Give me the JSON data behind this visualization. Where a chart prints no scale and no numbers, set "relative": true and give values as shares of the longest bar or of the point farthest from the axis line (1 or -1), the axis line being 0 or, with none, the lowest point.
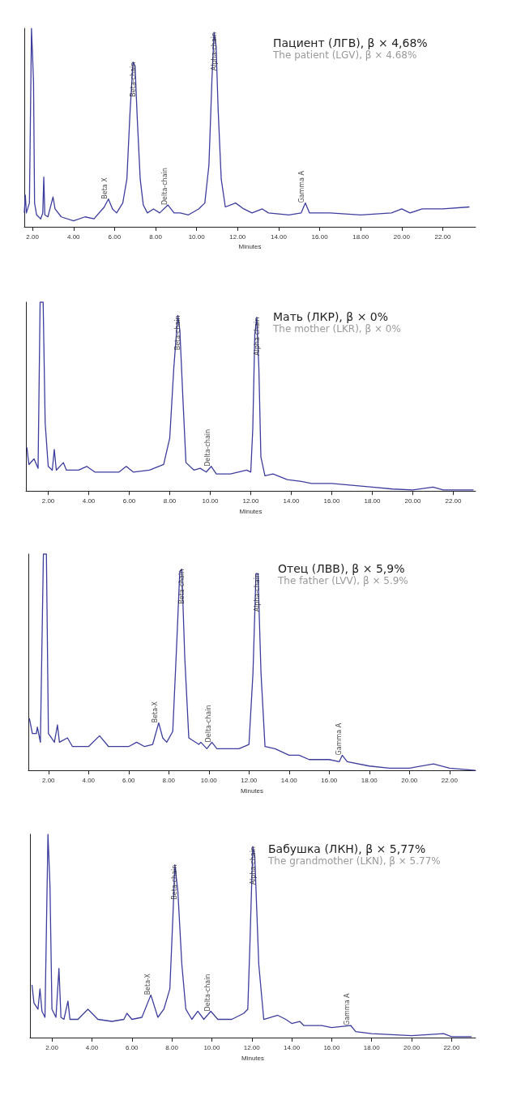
{
  "chart_data": [
    {
      "type": "line",
      "title": "Пациент (ЛГВ), β × 4,68%",
      "subtitle": "The patient (LGV), β × 4.68%",
      "xlabel": "Minutes",
      "relative": true,
      "tick_labels": "x",
      "grid": false,
      "marker": "none",
      "line_style": "solid",
      "xlim": [
        1.6,
        23.6
      ],
      "xticks": [
        {
          "value": 2,
          "label": "2.00"
        },
        {
          "value": 4,
          "label": "4.00"
        },
        {
          "value": 6,
          "label": "6.00"
        },
        {
          "value": 8,
          "label": "8.00"
        },
        {
          "value": 10,
          "label": "10.00"
        },
        {
          "value": 12,
          "label": "12.00"
        },
        {
          "value": 14,
          "label": "14.00"
        },
        {
          "value": 16,
          "label": "16.00"
        },
        {
          "value": 18,
          "label": "18.00"
        },
        {
          "value": 20,
          "label": "20.00"
        },
        {
          "value": 22,
          "label": "22.00"
        }
      ],
      "x": [
        1.6,
        1.65,
        1.7,
        1.85,
        1.95,
        2.05,
        2.1,
        2.2,
        2.4,
        2.5,
        2.55,
        2.6,
        2.75,
        3.0,
        3.1,
        3.4,
        4.0,
        4.56,
        5.0,
        5.5,
        5.7,
        5.9,
        6.1,
        6.4,
        6.6,
        6.75,
        6.9,
        7.0,
        7.1,
        7.25,
        7.4,
        7.6,
        7.9,
        8.2,
        8.6,
        8.9,
        9.2,
        9.6,
        10.1,
        10.4,
        10.6,
        10.75,
        10.85,
        10.95,
        11.05,
        11.2,
        11.4,
        11.9,
        12.3,
        12.7,
        13.2,
        13.5,
        14.5,
        15.1,
        15.3,
        15.5,
        16.5,
        18,
        19.5,
        20.0,
        20.4,
        21.0,
        22,
        23.3
      ],
      "series": [
        {
          "color": "#3d3d9e",
          "values": [
            0.07,
            0.16,
            0.07,
            0.12,
            1.0,
            0.73,
            0.12,
            0.06,
            0.04,
            0.07,
            0.25,
            0.06,
            0.05,
            0.15,
            0.09,
            0.05,
            0.03,
            0.05,
            0.04,
            0.1,
            0.14,
            0.09,
            0.07,
            0.12,
            0.24,
            0.57,
            0.83,
            0.81,
            0.56,
            0.24,
            0.11,
            0.07,
            0.09,
            0.07,
            0.11,
            0.07,
            0.07,
            0.06,
            0.09,
            0.12,
            0.31,
            0.75,
            0.98,
            0.91,
            0.59,
            0.24,
            0.1,
            0.12,
            0.09,
            0.07,
            0.09,
            0.07,
            0.06,
            0.07,
            0.12,
            0.07,
            0.07,
            0.06,
            0.07,
            0.09,
            0.07,
            0.09,
            0.09,
            0.1
          ]
        }
      ],
      "annotations": [
        {
          "text": "Beta X",
          "x": 5.7,
          "y": 0.14
        },
        {
          "text": "Beta-chain",
          "x": 6.9,
          "y": 0.83
        },
        {
          "text": "Delta-chain",
          "x": 8.6,
          "y": 0.11
        },
        {
          "text": "Alpha-chain",
          "x": 10.85,
          "y": 0.98
        },
        {
          "text": "Gamma A",
          "x": 15.3,
          "y": 0.12
        }
      ]
    },
    {
      "type": "line",
      "title": "Мать (ЛКР), β × 0%",
      "subtitle": "The mother (LKR), β × 0%",
      "xlabel": "Minutes",
      "relative": true,
      "tick_labels": "x",
      "grid": false,
      "marker": "none",
      "line_style": "solid",
      "xlim": [
        0.9,
        23.1
      ],
      "xticks": [
        {
          "value": 2,
          "label": "2.00"
        },
        {
          "value": 4,
          "label": "4.00"
        },
        {
          "value": 6,
          "label": "6.00"
        },
        {
          "value": 8,
          "label": "8.00"
        },
        {
          "value": 10,
          "label": "10.00"
        },
        {
          "value": 12,
          "label": "12.00"
        },
        {
          "value": 14,
          "label": "14.00"
        },
        {
          "value": 16,
          "label": "16.00"
        },
        {
          "value": 18,
          "label": "18.00"
        },
        {
          "value": 20,
          "label": "20.00"
        },
        {
          "value": 22,
          "label": "22.00"
        }
      ],
      "x": [
        0.95,
        1.0,
        1.05,
        1.3,
        1.5,
        1.6,
        1.75,
        1.85,
        2.0,
        2.2,
        2.3,
        2.4,
        2.75,
        2.9,
        3.5,
        3.9,
        4.3,
        5.0,
        5.5,
        5.85,
        6.2,
        7.0,
        7.7,
        8.0,
        8.2,
        8.4,
        8.5,
        8.65,
        8.8,
        9.2,
        9.5,
        9.8,
        10.05,
        10.3,
        11,
        11.8,
        12.0,
        12.1,
        12.2,
        12.3,
        12.4,
        12.5,
        12.7,
        13.1,
        13.8,
        14.5,
        15,
        16,
        17,
        18,
        19,
        20,
        21,
        21.5,
        23
      ],
      "series": [
        {
          "color": "#3d3d9e",
          "values": [
            0.23,
            0.18,
            0.14,
            0.17,
            0.12,
            1.0,
            1.0,
            0.36,
            0.13,
            0.11,
            0.22,
            0.11,
            0.15,
            0.11,
            0.11,
            0.13,
            0.1,
            0.1,
            0.1,
            0.13,
            0.1,
            0.11,
            0.14,
            0.28,
            0.65,
            0.93,
            0.85,
            0.49,
            0.15,
            0.11,
            0.12,
            0.1,
            0.13,
            0.09,
            0.09,
            0.11,
            0.1,
            0.33,
            0.83,
            0.92,
            0.65,
            0.18,
            0.08,
            0.09,
            0.06,
            0.05,
            0.04,
            0.04,
            0.03,
            0.02,
            0.01,
            0.005,
            0.02,
            0.005,
            0.005
          ]
        }
      ],
      "annotations": [
        {
          "text": "Beta-chain",
          "x": 8.4,
          "y": 0.93
        },
        {
          "text": "Delta-chain",
          "x": 10.05,
          "y": 0.13
        },
        {
          "text": "Alpha-chain",
          "x": 12.3,
          "y": 0.92
        }
      ]
    },
    {
      "type": "line",
      "title": "Отец (ЛВВ), β × 5,9%",
      "subtitle": "The father (LVV), β × 5.9%",
      "xlabel": "Minutes",
      "relative": true,
      "tick_labels": "x",
      "grid": false,
      "marker": "none",
      "line_style": "solid",
      "xlim": [
        1.0,
        23.3
      ],
      "xticks": [
        {
          "value": 2,
          "label": "2.00"
        },
        {
          "value": 4,
          "label": "4.00"
        },
        {
          "value": 6,
          "label": "6.00"
        },
        {
          "value": 8,
          "label": "8.00"
        },
        {
          "value": 10,
          "label": "10.00"
        },
        {
          "value": 12,
          "label": "12.00"
        },
        {
          "value": 14,
          "label": "14.00"
        },
        {
          "value": 16,
          "label": "16.00"
        },
        {
          "value": 18,
          "label": "18.00"
        },
        {
          "value": 20,
          "label": "20.00"
        },
        {
          "value": 22,
          "label": "22.00"
        }
      ],
      "x": [
        1.05,
        1.2,
        1.4,
        1.45,
        1.6,
        1.75,
        1.9,
        2.0,
        2.3,
        2.45,
        2.55,
        2.95,
        3.2,
        4.0,
        4.55,
        5.0,
        6.0,
        6.4,
        6.8,
        7.2,
        7.5,
        7.7,
        7.9,
        8.2,
        8.4,
        8.55,
        8.65,
        8.8,
        9.0,
        9.5,
        9.6,
        9.9,
        10.15,
        10.4,
        11,
        11.5,
        12.0,
        12.2,
        12.35,
        12.45,
        12.6,
        12.8,
        13.3,
        14,
        14.5,
        15,
        16,
        16.5,
        16.65,
        16.9,
        18,
        19,
        20,
        21.2,
        22,
        23.3
      ],
      "series": [
        {
          "color": "#3d3d9e",
          "values": [
            0.24,
            0.17,
            0.17,
            0.2,
            0.13,
            1.0,
            1.0,
            0.17,
            0.13,
            0.21,
            0.13,
            0.15,
            0.11,
            0.11,
            0.16,
            0.11,
            0.11,
            0.13,
            0.11,
            0.12,
            0.22,
            0.15,
            0.13,
            0.18,
            0.59,
            0.92,
            0.93,
            0.52,
            0.15,
            0.12,
            0.13,
            0.1,
            0.13,
            0.1,
            0.1,
            0.1,
            0.12,
            0.45,
            0.91,
            0.91,
            0.45,
            0.11,
            0.1,
            0.07,
            0.07,
            0.05,
            0.05,
            0.04,
            0.07,
            0.04,
            0.02,
            0.01,
            0.01,
            0.03,
            0.01,
            0.0
          ]
        }
      ],
      "annotations": [
        {
          "text": "Beta-X",
          "x": 7.5,
          "y": 0.22
        },
        {
          "text": "Beta-chain",
          "x": 8.65,
          "y": 0.93
        },
        {
          "text": "Delta-chain",
          "x": 10.15,
          "y": 0.13
        },
        {
          "text": "Alpha-chain",
          "x": 12.4,
          "y": 0.91
        },
        {
          "text": "Gamma A",
          "x": 16.65,
          "y": 0.07
        }
      ]
    },
    {
      "type": "line",
      "title": "Бабушка (ЛКН), β × 5,77%",
      "subtitle": "The grandmother (LKN), β × 5.77%",
      "xlabel": "Minutes",
      "relative": true,
      "tick_labels": "x",
      "grid": false,
      "marker": "none",
      "line_style": "solid",
      "xlim": [
        0.9,
        23.2
      ],
      "xticks": [
        {
          "value": 2,
          "label": "2.00"
        },
        {
          "value": 4,
          "label": "4.00"
        },
        {
          "value": 6,
          "label": "6.00"
        },
        {
          "value": 8,
          "label": "8.00"
        },
        {
          "value": 10,
          "label": "10.00"
        },
        {
          "value": 12,
          "label": "12.00"
        },
        {
          "value": 14,
          "label": "14.00"
        },
        {
          "value": 16,
          "label": "16.00"
        },
        {
          "value": 18,
          "label": "18.00"
        },
        {
          "value": 20,
          "label": "20.00"
        },
        {
          "value": 22,
          "label": "22.00"
        }
      ],
      "x": [
        1.0,
        1.1,
        1.3,
        1.4,
        1.5,
        1.65,
        1.8,
        1.9,
        2.0,
        2.2,
        2.35,
        2.45,
        2.6,
        2.8,
        2.9,
        3.3,
        3.8,
        4.3,
        5.0,
        5.6,
        5.75,
        6.0,
        6.5,
        6.95,
        7.3,
        7.6,
        7.9,
        8.05,
        8.15,
        8.3,
        8.5,
        8.7,
        9.0,
        9.3,
        9.6,
        9.95,
        10.3,
        11,
        11.6,
        11.8,
        11.9,
        12.05,
        12.15,
        12.35,
        12.6,
        13.3,
        13.7,
        14.0,
        14.4,
        14.6,
        15.5,
        16,
        16.95,
        17.2,
        18,
        20,
        21.6,
        22,
        23
      ],
      "series": [
        {
          "color": "#3d3d9e",
          "values": [
            0.26,
            0.17,
            0.14,
            0.24,
            0.13,
            0.1,
            1.0,
            0.75,
            0.14,
            0.1,
            0.34,
            0.1,
            0.09,
            0.18,
            0.09,
            0.09,
            0.14,
            0.09,
            0.08,
            0.09,
            0.12,
            0.09,
            0.1,
            0.21,
            0.1,
            0.14,
            0.24,
            0.59,
            0.85,
            0.72,
            0.36,
            0.14,
            0.09,
            0.13,
            0.09,
            0.13,
            0.09,
            0.09,
            0.12,
            0.14,
            0.44,
            0.94,
            0.89,
            0.36,
            0.09,
            0.11,
            0.09,
            0.07,
            0.08,
            0.06,
            0.06,
            0.05,
            0.06,
            0.03,
            0.02,
            0.01,
            0.02,
            0.005,
            0.005
          ]
        }
      ],
      "annotations": [
        {
          "text": "Beta-X",
          "x": 6.95,
          "y": 0.21
        },
        {
          "text": "Beta-chain",
          "x": 8.15,
          "y": 0.85
        },
        {
          "text": "Delta-chain",
          "x": 9.95,
          "y": 0.13
        },
        {
          "text": "Alpha-chain",
          "x": 12.05,
          "y": 0.94
        },
        {
          "text": "Gamma A",
          "x": 16.95,
          "y": 0.06
        }
      ]
    }
  ]
}
